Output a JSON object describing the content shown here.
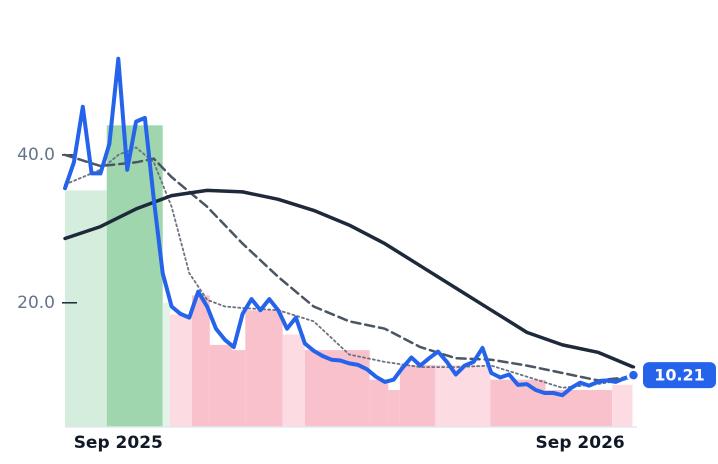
{
  "chart_data": {
    "type": "line",
    "x": [
      0,
      1,
      2,
      3,
      4,
      5,
      6,
      7,
      8,
      9,
      10,
      11,
      12,
      13,
      14,
      15,
      16,
      17,
      18,
      19,
      20,
      21,
      22,
      23,
      24,
      25,
      26,
      27,
      28,
      29,
      30,
      31,
      32,
      33,
      34,
      35,
      36,
      37,
      38,
      39,
      40,
      41,
      42,
      43,
      44,
      45,
      46,
      47,
      48,
      49,
      50,
      51,
      52,
      53,
      54,
      55,
      56,
      57,
      58,
      59,
      60,
      61,
      62,
      63,
      64
    ],
    "series": [
      {
        "color": "#2563eb",
        "width": 4,
        "dash": "solid",
        "values": [
          35.5,
          39,
          46.5,
          37.5,
          37.5,
          41.5,
          53,
          38,
          44.5,
          45,
          34,
          24,
          19.5,
          18.5,
          18,
          21.5,
          19.5,
          16.5,
          15,
          14,
          18.5,
          20.5,
          19,
          20.5,
          19,
          16.5,
          18,
          14.5,
          13.5,
          12.8,
          12.3,
          12.2,
          11.8,
          11.6,
          11,
          10,
          9.3,
          9.6,
          11.2,
          12.6,
          11.5,
          12.5,
          13.4,
          12,
          10.3,
          11.5,
          12,
          13.9,
          10.5,
          9.9,
          10.3,
          8.9,
          9,
          8.2,
          7.8,
          7.8,
          7.5,
          8.5,
          9.2,
          8.8,
          9.3,
          9.5,
          9.3,
          9.8,
          10.21
        ]
      },
      {
        "color": "#1e293b",
        "width": 3.5,
        "dash": "solid",
        "x": [
          0,
          4,
          8,
          12,
          16,
          20,
          24,
          28,
          32,
          36,
          40,
          44,
          48,
          52,
          56,
          60,
          64
        ],
        "values": [
          28.7,
          30.3,
          32.7,
          34.5,
          35.2,
          35,
          34,
          32.5,
          30.5,
          28,
          25,
          22,
          19,
          16,
          14.3,
          13.3,
          11.3
        ]
      },
      {
        "color": "#4b5563",
        "width": 2.5,
        "dash": "dashed",
        "x": [
          0,
          4,
          8,
          10,
          12,
          16,
          20,
          24,
          28,
          32,
          36,
          40,
          44,
          48,
          52,
          56,
          60,
          64
        ],
        "values": [
          40,
          38.5,
          39,
          39.5,
          37,
          33,
          28,
          23.5,
          19.5,
          17.5,
          16.5,
          14,
          12.5,
          12.3,
          11.5,
          10.5,
          9.5,
          10
        ]
      },
      {
        "color": "#6b7280",
        "width": 1.8,
        "dash": "dotted",
        "x": [
          0,
          2,
          4,
          6,
          8,
          10,
          12,
          14,
          16,
          18,
          20,
          24,
          28,
          32,
          36,
          40,
          44,
          48,
          52,
          56,
          60,
          64
        ],
        "values": [
          36,
          37,
          38,
          40,
          41,
          39,
          33,
          24,
          20.4,
          19.5,
          19.3,
          19,
          17.5,
          13,
          12,
          11.3,
          11.3,
          11.5,
          10,
          8.5,
          9,
          9.8
        ]
      }
    ],
    "bands": {
      "edges": [
        0,
        4.7,
        11,
        11.8,
        14.3,
        16.3,
        18.8,
        20.3,
        24.5,
        27,
        34.3,
        36.4,
        37.7,
        41.7,
        47.9,
        54.1,
        61.6,
        63.9
      ],
      "values": [
        35.2,
        44,
        20,
        18.4,
        21,
        14.3,
        13.6,
        19,
        15.7,
        13.6,
        9.6,
        8.2,
        11.6,
        11.6,
        9.6,
        8.2,
        8.9
      ],
      "colors": [
        "#d4eddc",
        "#9fd6ae",
        "#e4f3e8",
        "#fcdce2",
        "#f8c1cb",
        "#f8c1cb",
        "#f8c1cb",
        "#f8c1cb",
        "#fcdce2",
        "#f8c1cb",
        "#f8c1cb",
        "#f8c1cb",
        "#f8c1cb",
        "#fcdce2",
        "#f8c1cb",
        "#f8c1cb",
        "#fcdce2"
      ]
    },
    "xlim": [
      0,
      64.4
    ],
    "xticks": [
      {
        "value": 6,
        "label": "Sep 2025"
      },
      {
        "value": 58,
        "label": "Sep 2026"
      }
    ],
    "ylim": [
      3.2,
      55
    ],
    "yticks": [
      {
        "value": 20,
        "label": "20.0"
      },
      {
        "value": 40,
        "label": "40.0"
      }
    ]
  }
}
